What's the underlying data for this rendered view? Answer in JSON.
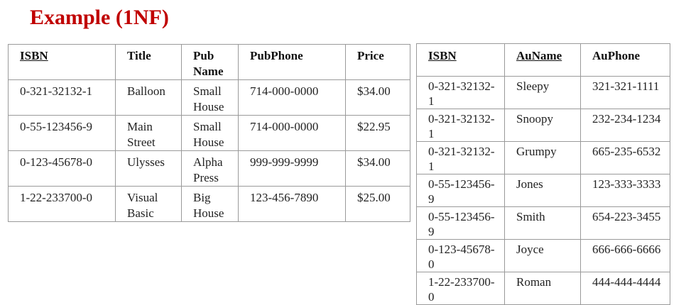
{
  "title": "Example (1NF)",
  "books_table": {
    "headers": [
      "ISBN",
      "Title",
      "Pub Name",
      "PubPhone",
      "Price"
    ],
    "rows": [
      [
        "0-321-32132-1",
        "Balloon",
        "Small House",
        "714-000-0000",
        "$34.00"
      ],
      [
        "0-55-123456-9",
        "Main Street",
        "Small House",
        "714-000-0000",
        "$22.95"
      ],
      [
        "0-123-45678-0",
        "Ulysses",
        "Alpha Press",
        "999-999-9999",
        "$34.00"
      ],
      [
        "1-22-233700-0",
        "Visual Basic",
        "Big House",
        "123-456-7890",
        "$25.00"
      ]
    ]
  },
  "authors_table": {
    "headers": [
      "ISBN",
      "AuName",
      "AuPhone"
    ],
    "rows": [
      [
        "0-321-32132-1",
        "Sleepy",
        "321-321-1111"
      ],
      [
        "0-321-32132-1",
        "Snoopy",
        "232-234-1234"
      ],
      [
        "0-321-32132-1",
        "Grumpy",
        "665-235-6532"
      ],
      [
        "0-55-123456-9",
        "Jones",
        "123-333-3333"
      ],
      [
        "0-55-123456-9",
        "Smith",
        "654-223-3455"
      ],
      [
        "0-123-45678-0",
        "Joyce",
        "666-666-6666"
      ],
      [
        "1-22-233700-0",
        "Roman",
        "444-444-4444"
      ]
    ]
  }
}
